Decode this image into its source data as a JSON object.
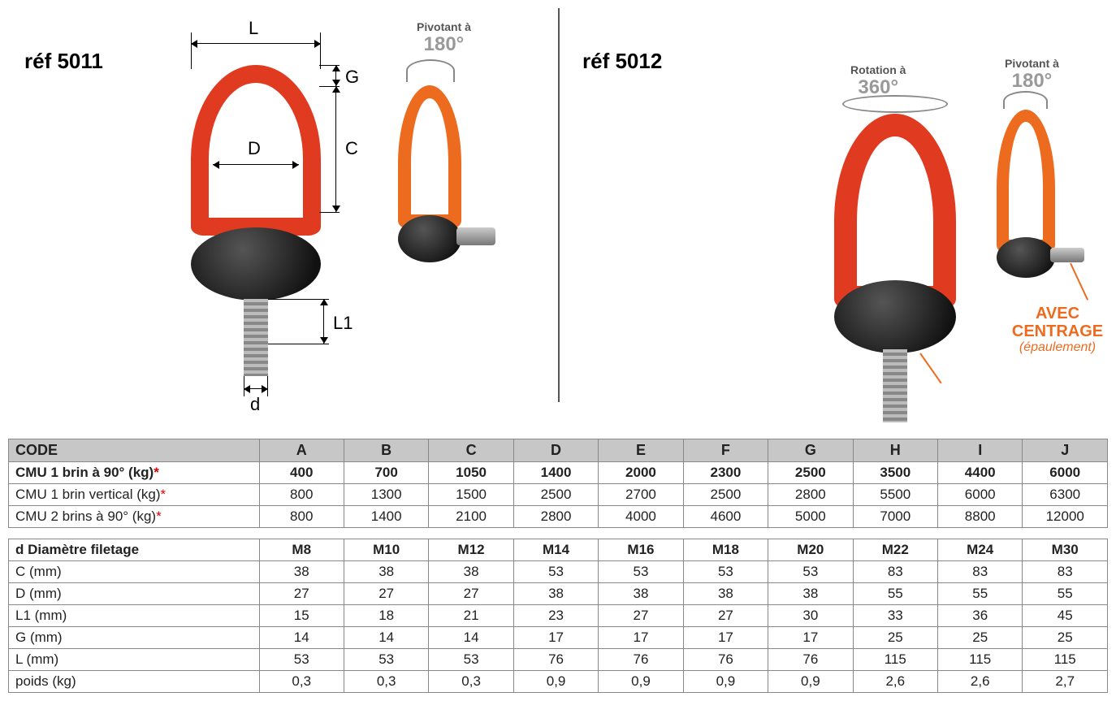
{
  "left": {
    "ref": "réf 5011",
    "pivot_label": "Pivotant à",
    "pivot_deg": "180°",
    "dims": {
      "L": "L",
      "G": "G",
      "C": "C",
      "D": "D",
      "L1": "L1",
      "d": "d"
    }
  },
  "right": {
    "ref": "réf 5012",
    "rotation_label": "Rotation à",
    "rotation_deg": "360°",
    "pivot_label": "Pivotant à",
    "pivot_deg": "180°",
    "centrage_big": "AVEC CENTRAGE",
    "centrage_small": "(épaulement)"
  },
  "table": {
    "columns": [
      "CODE",
      "A",
      "B",
      "C",
      "D",
      "E",
      "F",
      "G",
      "H",
      "I",
      "J"
    ],
    "col_widths_pct": [
      22.8,
      7.72,
      7.72,
      7.72,
      7.72,
      7.72,
      7.72,
      7.72,
      7.72,
      7.72,
      7.72
    ],
    "header_bg": "#c7c7c7",
    "border_color": "#888888",
    "text_color": "#222222",
    "asterisk_color": "#dd0000",
    "fontsize": 17,
    "rows_top": [
      {
        "label": "CMU 1 brin à 90° (kg)",
        "asterisk": true,
        "bold": true,
        "cells": [
          "400",
          "700",
          "1050",
          "1400",
          "2000",
          "2300",
          "2500",
          "3500",
          "4400",
          "6000"
        ]
      },
      {
        "label": "CMU 1 brin vertical (kg)",
        "asterisk": true,
        "bold": false,
        "cells": [
          "800",
          "1300",
          "1500",
          "2500",
          "2700",
          "2500",
          "2800",
          "5500",
          "6000",
          "6300"
        ]
      },
      {
        "label": "CMU 2 brins à 90° (kg)",
        "asterisk": true,
        "bold": false,
        "cells": [
          "800",
          "1400",
          "2100",
          "2800",
          "4000",
          "4600",
          "5000",
          "7000",
          "8800",
          "12000"
        ]
      }
    ],
    "rows_bottom": [
      {
        "label": "d Diamètre filetage",
        "asterisk": false,
        "bold": true,
        "cells": [
          "M8",
          "M10",
          "M12",
          "M14",
          "M16",
          "M18",
          "M20",
          "M22",
          "M24",
          "M30"
        ]
      },
      {
        "label": "C (mm)",
        "asterisk": false,
        "bold": false,
        "cells": [
          "38",
          "38",
          "38",
          "53",
          "53",
          "53",
          "53",
          "83",
          "83",
          "83"
        ]
      },
      {
        "label": "D (mm)",
        "asterisk": false,
        "bold": false,
        "cells": [
          "27",
          "27",
          "27",
          "38",
          "38",
          "38",
          "38",
          "55",
          "55",
          "55"
        ]
      },
      {
        "label": "L1 (mm)",
        "asterisk": false,
        "bold": false,
        "cells": [
          "15",
          "18",
          "21",
          "23",
          "27",
          "27",
          "30",
          "33",
          "36",
          "45"
        ]
      },
      {
        "label": "G (mm)",
        "asterisk": false,
        "bold": false,
        "cells": [
          "14",
          "14",
          "14",
          "17",
          "17",
          "17",
          "17",
          "25",
          "25",
          "25"
        ]
      },
      {
        "label": "L (mm)",
        "asterisk": false,
        "bold": false,
        "cells": [
          "53",
          "53",
          "53",
          "76",
          "76",
          "76",
          "76",
          "115",
          "115",
          "115"
        ]
      },
      {
        "label": "poids (kg)",
        "asterisk": false,
        "bold": false,
        "cells": [
          "0,3",
          "0,3",
          "0,3",
          "0,9",
          "0,9",
          "0,9",
          "0,9",
          "2,6",
          "2,6",
          "2,7"
        ]
      }
    ]
  },
  "colors": {
    "ring": "#e03a20",
    "ring_alt": "#ed6b1f",
    "base": "#111111",
    "text": "#222222",
    "dim": "#000000",
    "grey_text": "#999999"
  }
}
